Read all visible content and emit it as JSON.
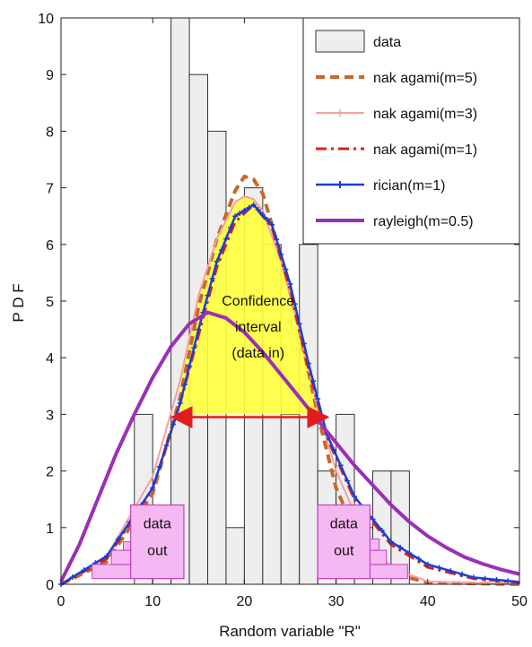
{
  "chart_data": {
    "type": "bar",
    "xlabel": "Random variable \"R\"",
    "ylabel": "P D F",
    "xlim": [
      0,
      50
    ],
    "ylim": [
      0,
      10
    ],
    "xticks": [
      0,
      10,
      20,
      30,
      40,
      50
    ],
    "yticks": [
      0,
      1,
      2,
      3,
      4,
      5,
      6,
      7,
      8,
      9,
      10
    ],
    "grid": false,
    "legend_position": "top-right",
    "histogram": {
      "name": "data",
      "bin_width": 2,
      "bins": [
        {
          "x": 9,
          "value": 3
        },
        {
          "x": 11,
          "value": 0.3
        },
        {
          "x": 13,
          "value": 10
        },
        {
          "x": 15,
          "value": 9
        },
        {
          "x": 17,
          "value": 8
        },
        {
          "x": 19,
          "value": 1
        },
        {
          "x": 21,
          "value": 7
        },
        {
          "x": 23,
          "value": 6
        },
        {
          "x": 25,
          "value": 3
        },
        {
          "x": 27,
          "value": 6
        },
        {
          "x": 29,
          "value": 2
        },
        {
          "x": 31,
          "value": 3
        },
        {
          "x": 33,
          "value": 1
        },
        {
          "x": 35,
          "value": 2
        },
        {
          "x": 37,
          "value": 2
        }
      ]
    },
    "series": [
      {
        "name": "nak agami(m=5)",
        "color": "#c8672a",
        "style": "dashed",
        "x": [
          0,
          5,
          10,
          13,
          15,
          17,
          19,
          20,
          21,
          22,
          24,
          26,
          28,
          30,
          33,
          36,
          40,
          50
        ],
        "y": [
          0,
          0.4,
          1.6,
          3.3,
          4.9,
          6.1,
          6.95,
          7.2,
          7.15,
          6.9,
          5.8,
          4.5,
          3.0,
          1.7,
          0.6,
          0.2,
          0.03,
          0
        ]
      },
      {
        "name": "nak agami(m=3)",
        "color": "#f4a0a0",
        "style": "solid",
        "x": [
          0,
          5,
          10,
          13,
          15,
          17,
          19,
          20,
          21,
          22,
          24,
          26,
          28,
          30,
          33,
          36,
          40,
          50
        ],
        "y": [
          0,
          0.5,
          1.9,
          3.6,
          5.1,
          6.1,
          6.75,
          6.85,
          6.8,
          6.6,
          5.7,
          4.5,
          3.1,
          2.0,
          0.9,
          0.3,
          0.05,
          0
        ]
      },
      {
        "name": "nak agami(m=1)",
        "color": "#d91f1f",
        "style": "dashdot",
        "x": [
          0,
          5,
          10,
          13,
          15,
          17,
          19,
          21,
          23,
          25,
          27,
          29,
          32,
          36,
          40,
          45,
          50
        ],
        "y": [
          0,
          0.45,
          1.7,
          3.2,
          4.4,
          5.6,
          6.4,
          6.7,
          6.3,
          5.2,
          3.8,
          2.6,
          1.5,
          0.7,
          0.3,
          0.1,
          0.03
        ]
      },
      {
        "name": "rician(m=1)",
        "color": "#1a3fd1",
        "style": "solid-marker",
        "x": [
          0,
          5,
          10,
          13,
          15,
          17,
          19,
          21,
          23,
          25,
          27,
          29,
          32,
          36,
          40,
          45,
          50
        ],
        "y": [
          0,
          0.5,
          1.7,
          3.2,
          4.5,
          5.7,
          6.5,
          6.7,
          6.35,
          5.3,
          3.9,
          2.65,
          1.55,
          0.75,
          0.35,
          0.12,
          0.04
        ]
      },
      {
        "name": "rayleigh(m=0.5)",
        "color": "#9b2fb5",
        "style": "solid-thick",
        "x": [
          0,
          2,
          4,
          6,
          8,
          10,
          12,
          14,
          16,
          18,
          20,
          22,
          24,
          26,
          28,
          30,
          32,
          34,
          36,
          38,
          40,
          42,
          44,
          46,
          48,
          50
        ],
        "y": [
          0.05,
          0.7,
          1.5,
          2.3,
          3.0,
          3.65,
          4.2,
          4.6,
          4.8,
          4.7,
          4.45,
          4.1,
          3.7,
          3.3,
          2.9,
          2.5,
          2.1,
          1.75,
          1.4,
          1.1,
          0.85,
          0.65,
          0.48,
          0.36,
          0.26,
          0.18
        ]
      }
    ],
    "annotations": {
      "confidence_lines": [
        "Confidence",
        "interval",
        "(data in)"
      ],
      "data_out_left": [
        "data",
        "out"
      ],
      "data_out_right": [
        "data",
        "out"
      ]
    },
    "colors": {
      "histogram_fill": "#eeeeee",
      "confidence_fill": "#ffff3c",
      "data_out_fill": "#f6b8f2",
      "data_out_border": "#c23fbf",
      "arrow": "#e01c1c"
    }
  }
}
